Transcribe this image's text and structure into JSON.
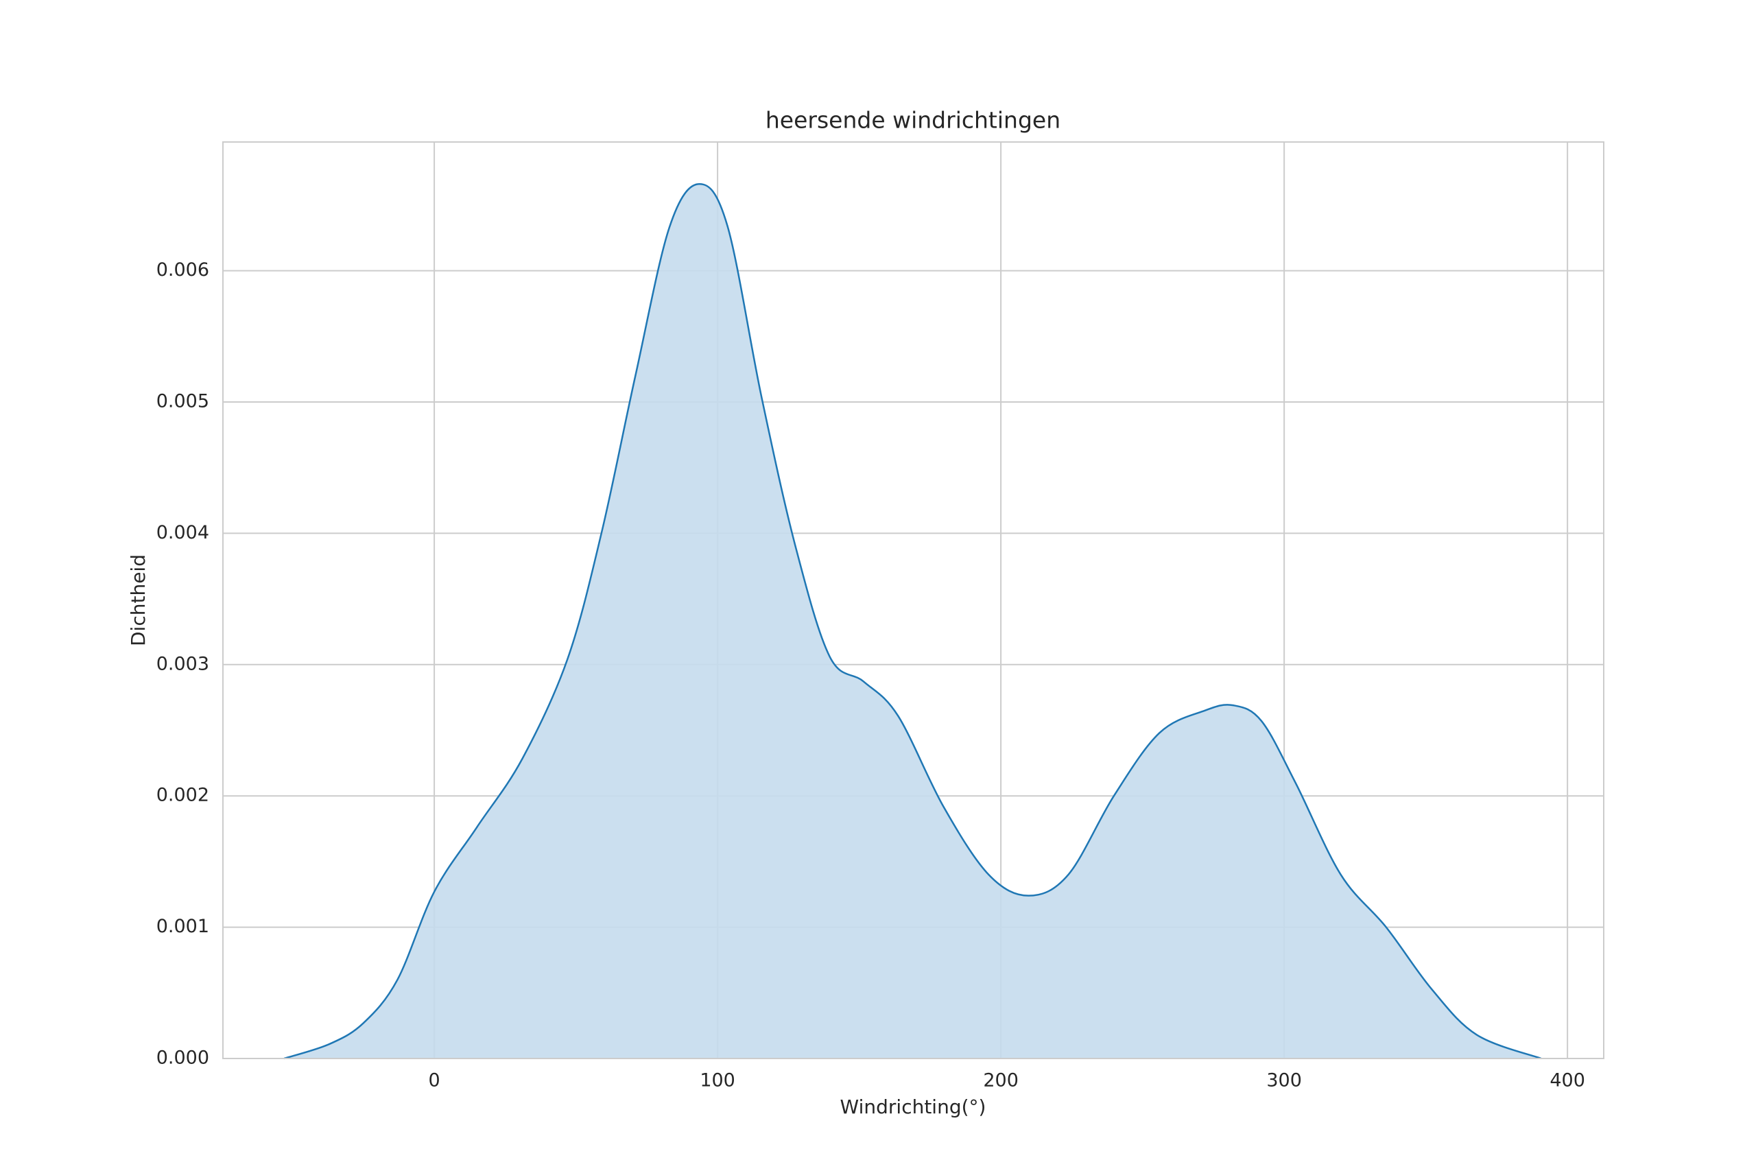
{
  "chart_data": {
    "type": "kde",
    "title": "heersende windrichtingen",
    "x_label": "Windrichting(°)",
    "y_label": "Dichtheid",
    "color": "#1f77b4",
    "fill_color": "#c5dbed",
    "grid": true,
    "x": [
      -53,
      -37,
      -25,
      -13,
      0,
      15,
      31,
      47,
      59,
      71,
      83,
      93.5,
      103.5,
      115.5,
      127.5,
      139.6,
      151.6,
      163.7,
      179.7,
      195.7,
      209.8,
      223.8,
      239.9,
      256,
      272,
      282,
      292,
      304,
      320,
      336,
      352,
      368,
      390.7
    ],
    "values": [
      0,
      0.00011,
      0.00027,
      0.0006,
      0.00127,
      0.00176,
      0.00228,
      0.00304,
      0.004,
      0.0052,
      0.00633,
      0.00666,
      0.00634,
      0.00504,
      0.0039,
      0.00306,
      0.00287,
      0.00261,
      0.00192,
      0.0014,
      0.00124,
      0.0014,
      0.002,
      0.00248,
      0.00265,
      0.00269,
      0.00257,
      0.0021,
      0.0014,
      0.001,
      0.00053,
      0.00018,
      0
    ],
    "xlim": [
      -74.6,
      412.8
    ],
    "ylim": [
      0,
      0.00698
    ],
    "xticks": [
      0,
      100,
      200,
      300,
      400
    ],
    "yticks": [
      {
        "value": 0,
        "label": "0.000"
      },
      {
        "value": 0.001,
        "label": "0.001"
      },
      {
        "value": 0.002,
        "label": "0.002"
      },
      {
        "value": 0.003,
        "label": "0.003"
      },
      {
        "value": 0.004,
        "label": "0.004"
      },
      {
        "value": 0.005,
        "label": "0.005"
      },
      {
        "value": 0.006,
        "label": "0.006"
      }
    ]
  }
}
